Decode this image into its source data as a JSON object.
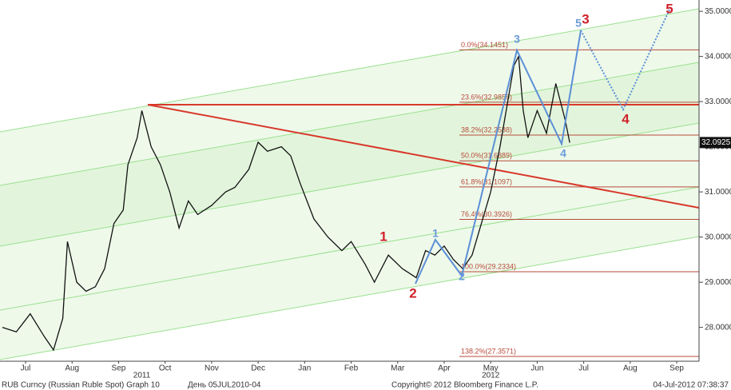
{
  "chart_data": {
    "type": "line",
    "title": "RUB Curncy (Russian Ruble Spot) Graph 10",
    "x": [
      0,
      0.3,
      0.6,
      0.9,
      1.1,
      1.3,
      1.4,
      1.6,
      1.8,
      2.0,
      2.2,
      2.4,
      2.6,
      2.7,
      2.9,
      3.0,
      3.2,
      3.4,
      3.6,
      3.8,
      4.0,
      4.2,
      4.5,
      4.8,
      5.0,
      5.3,
      5.5,
      5.7,
      6.0,
      6.2,
      6.4,
      6.7,
      7.0,
      7.3,
      7.5,
      7.8,
      8.0,
      8.3,
      8.6,
      8.9,
      9.1,
      9.3,
      9.5,
      9.7,
      9.9,
      10.1,
      10.3,
      10.5,
      10.7,
      10.9,
      11.0,
      11.1,
      11.2,
      11.3,
      11.5,
      11.7,
      11.9,
      12.0,
      12.1,
      12.2
    ],
    "series": [
      {
        "name": "RUB Curncy",
        "color": "#111111",
        "values": [
          28.0,
          27.9,
          28.3,
          27.8,
          27.5,
          28.2,
          29.9,
          29.0,
          28.8,
          28.9,
          29.3,
          30.3,
          30.6,
          31.6,
          32.2,
          32.8,
          32.0,
          31.6,
          31.0,
          30.2,
          30.8,
          30.5,
          30.7,
          31.0,
          31.1,
          31.5,
          32.1,
          31.9,
          32.0,
          31.8,
          31.2,
          30.4,
          30.0,
          29.7,
          29.9,
          29.4,
          29.0,
          29.6,
          29.3,
          29.1,
          29.7,
          29.6,
          29.8,
          29.5,
          29.3,
          29.6,
          30.3,
          31.0,
          32.0,
          33.2,
          33.8,
          34.0,
          32.8,
          32.2,
          32.8,
          32.3,
          33.4,
          33.0,
          32.6,
          32.09
        ]
      }
    ],
    "last_price": {
      "value": 32.0925,
      "label": "32.0925"
    },
    "xlim": [
      -0.05,
      14.98
    ],
    "xticks": [
      {
        "value": 0.5,
        "label": "Jul"
      },
      {
        "value": 1.5,
        "label": "Aug"
      },
      {
        "value": 2.5,
        "label": "Sep"
      },
      {
        "value": 3.5,
        "label": "Oct"
      },
      {
        "value": 4.5,
        "label": "Nov"
      },
      {
        "value": 5.5,
        "label": "Dec"
      },
      {
        "value": 6.5,
        "label": "Jan"
      },
      {
        "value": 7.5,
        "label": "Feb"
      },
      {
        "value": 8.5,
        "label": "Mar"
      },
      {
        "value": 9.5,
        "label": "Apr"
      },
      {
        "value": 10.5,
        "label": "May"
      },
      {
        "value": 11.5,
        "label": "Jun"
      },
      {
        "value": 12.5,
        "label": "Jul"
      },
      {
        "value": 13.5,
        "label": "Aug"
      },
      {
        "value": 14.5,
        "label": "Sep"
      }
    ],
    "years": [
      {
        "value": 3,
        "label": "2011"
      },
      {
        "value": 10.5,
        "label": "2012"
      }
    ],
    "ylim": [
      27.25,
      35.25
    ],
    "yticks": [
      {
        "value": 28,
        "label": "28.0000"
      },
      {
        "value": 29,
        "label": "29.0000"
      },
      {
        "value": 30,
        "label": "30.0000"
      },
      {
        "value": 31,
        "label": "31.0000"
      },
      {
        "value": 32,
        "label": "32.0000"
      },
      {
        "value": 33,
        "label": "33.0000"
      },
      {
        "value": 34,
        "label": "34.0000"
      },
      {
        "value": 35,
        "label": "35.0000"
      }
    ],
    "fib_levels": [
      {
        "value": 34.1451,
        "label": "0.0%(34.1451)"
      },
      {
        "value": 32.9859,
        "label": "23.6%(32.9859)"
      },
      {
        "value": 32.2588,
        "label": "38.2%(32.2588)"
      },
      {
        "value": 31.6889,
        "label": "50.0%(31.6889)"
      },
      {
        "value": 31.1097,
        "label": "61.8%(31.1097)"
      },
      {
        "value": 30.3926,
        "label": "76.4%(30.3926)"
      },
      {
        "value": 29.2334,
        "label": "100.0%(29.2334)"
      },
      {
        "value": 27.3571,
        "label": "138.2%(27.3571)"
      }
    ],
    "red_waves": [
      "1",
      "2",
      "3",
      "4",
      "5"
    ],
    "blue_waves": [
      "1",
      "2",
      "3",
      "4",
      "5"
    ],
    "footer": [
      "День 05JUL2010-04",
      "Copyright© 2012 Bloomberg Finance L.P.",
      "04-Jul-2012 07:38:37"
    ]
  }
}
